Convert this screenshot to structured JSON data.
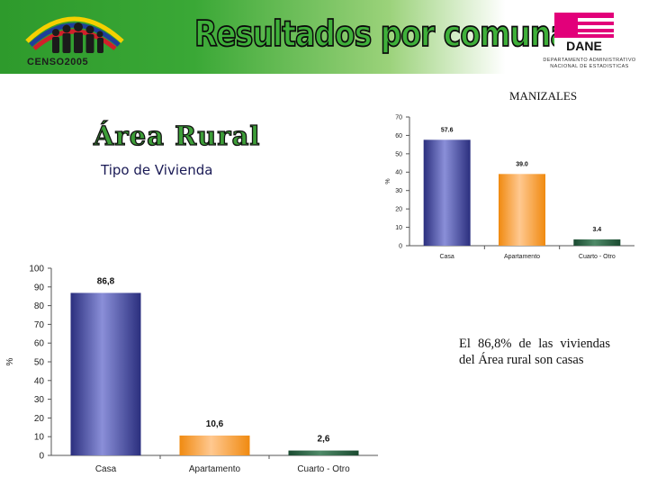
{
  "header": {
    "logo_text": "CENSO2005",
    "title": "Resultados por comuna",
    "dane_logo": "DANE",
    "dane_subtitle_line1": "DEPARTAMENTO ADMINISTRATIVO",
    "dane_subtitle_line2": "NACIONAL DE ESTADISTICAS"
  },
  "city": "MANIZALES",
  "section_title": "Área Rural",
  "subtitle": "Tipo de Vivienda",
  "note": "El 86,8% de las viviendas del Área rural son casas",
  "colors": {
    "casa": "#3f439b",
    "apartamento": "#f7931e",
    "otro": "#1f5b3b",
    "header_green": "#2e9a2c"
  },
  "chart_data": [
    {
      "type": "bar",
      "categories": [
        "Casa",
        "Apartamento",
        "Cuarto - Otro"
      ],
      "values": [
        57.6,
        39.0,
        3.4
      ],
      "value_labels": [
        "57.6",
        "39.0",
        "3.4"
      ],
      "ylabel": "%",
      "ylim": [
        0,
        70
      ],
      "yticks": [
        "0",
        "10",
        "20",
        "30",
        "40",
        "50",
        "60",
        "70"
      ],
      "grid": false
    },
    {
      "type": "bar",
      "categories": [
        "Casa",
        "Apartamento",
        "Cuarto - Otro"
      ],
      "values": [
        86.8,
        10.6,
        2.6
      ],
      "value_labels": [
        "86,8",
        "10,6",
        "2,6"
      ],
      "ylabel": "%",
      "ylim": [
        0,
        100
      ],
      "yticks": [
        "0",
        "10",
        "20",
        "30",
        "40",
        "50",
        "60",
        "70",
        "80",
        "90",
        "100"
      ],
      "grid": false
    }
  ]
}
